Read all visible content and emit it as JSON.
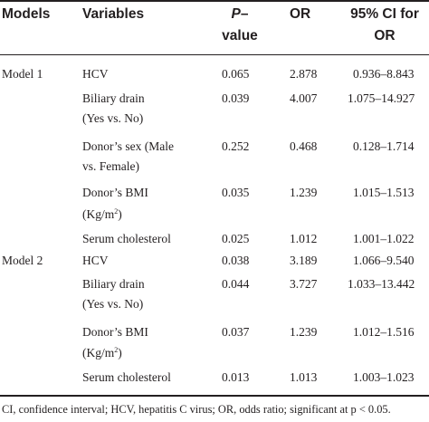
{
  "table": {
    "headers": {
      "models": "Models",
      "variables": "Variables",
      "p_line1": "P",
      "p_dash": "–",
      "p_line2": "value",
      "or": "OR",
      "ci_line1": "95% CI for",
      "ci_line2": "OR"
    },
    "rows": [
      {
        "model": "Model 1",
        "var1": "HCV",
        "var2": "",
        "p": "0.065",
        "or": "2.878",
        "ci": "0.936–8.843"
      },
      {
        "model": "",
        "var1": "Biliary drain",
        "var2": "(Yes vs. No)",
        "p": "0.039",
        "or": "4.007",
        "ci": "1.075–14.927"
      },
      {
        "model": "",
        "var1": "Donor’s sex (Male",
        "var2": "vs. Female)",
        "p": "0.252",
        "or": "0.468",
        "ci": "0.128–1.714"
      },
      {
        "model": "",
        "var1": "Donor’s BMI",
        "var2": "(Kg/m",
        "sup": "2",
        "var2_end": ")",
        "p": "0.035",
        "or": "1.239",
        "ci": "1.015–1.513"
      },
      {
        "model": "",
        "var1": "Serum cholesterol",
        "var2": "",
        "p": "0.025",
        "or": "1.012",
        "ci": "1.001–1.022"
      },
      {
        "model": "Model 2",
        "var1": "HCV",
        "var2": "",
        "p": "0.038",
        "or": "3.189",
        "ci": "1.066–9.540"
      },
      {
        "model": "",
        "var1": "Biliary drain",
        "var2": "(Yes vs. No)",
        "p": "0.044",
        "or": "3.727",
        "ci": "1.033–13.442"
      },
      {
        "model": "",
        "var1": "Donor’s BMI",
        "var2": "(Kg/m",
        "sup": "2",
        "var2_end": ")",
        "p": "0.037",
        "or": "1.239",
        "ci": "1.012–1.516"
      },
      {
        "model": "",
        "var1": "Serum cholesterol",
        "var2": "",
        "p": "0.013",
        "or": "1.013",
        "ci": "1.003–1.023"
      }
    ],
    "footnote": "CI, confidence interval; HCV, hepatitis C virus; OR, odds ratio; significant at p < 0.05."
  }
}
